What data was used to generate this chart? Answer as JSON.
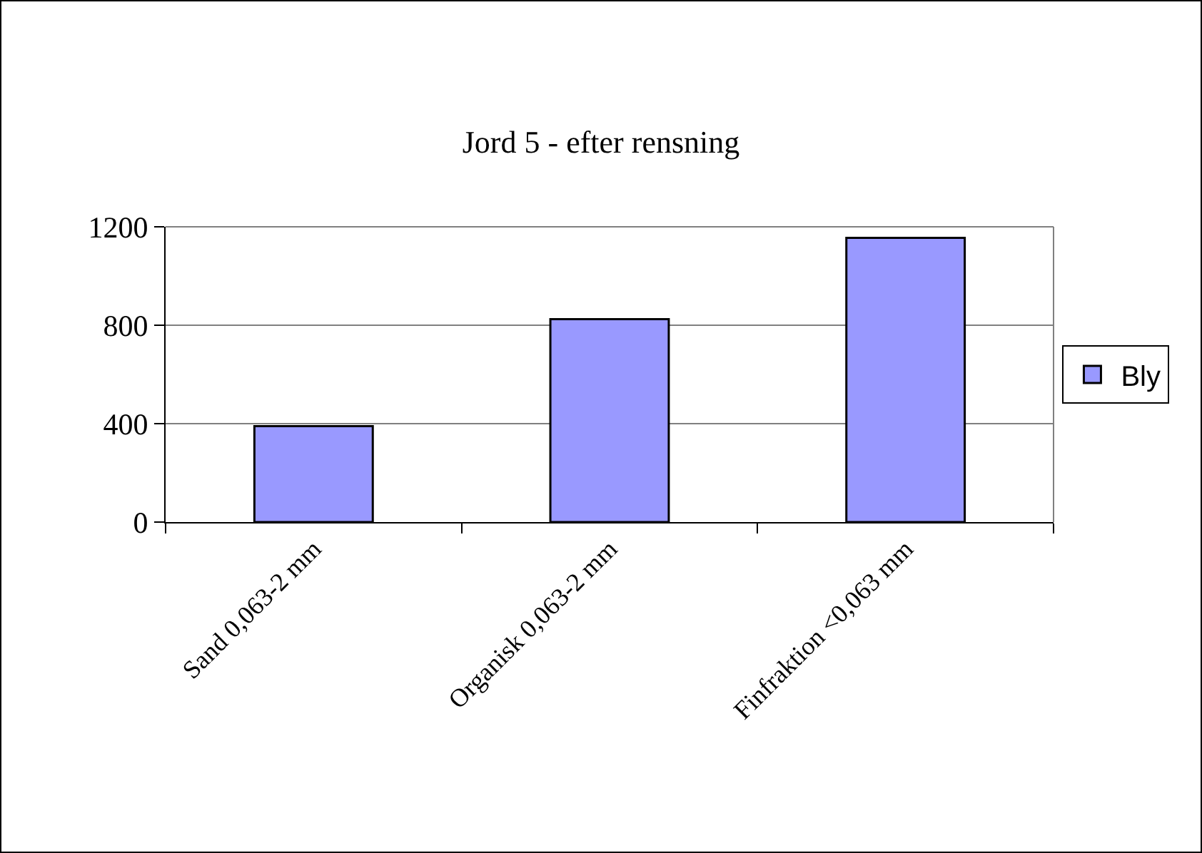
{
  "chart_data": {
    "type": "bar",
    "title": "Jord 5 - efter rensning",
    "categories": [
      "Sand 0,063-2 mm",
      "Organisk 0,063-2 mm",
      "Finfraktion <0,063 mm"
    ],
    "series": [
      {
        "name": "Bly",
        "color": "#9999ff",
        "values": [
          390,
          825,
          1155
        ]
      }
    ],
    "ylim": [
      0,
      1200
    ],
    "yticks": [
      0,
      400,
      800,
      1200
    ],
    "grid": "y",
    "legend": "right"
  }
}
